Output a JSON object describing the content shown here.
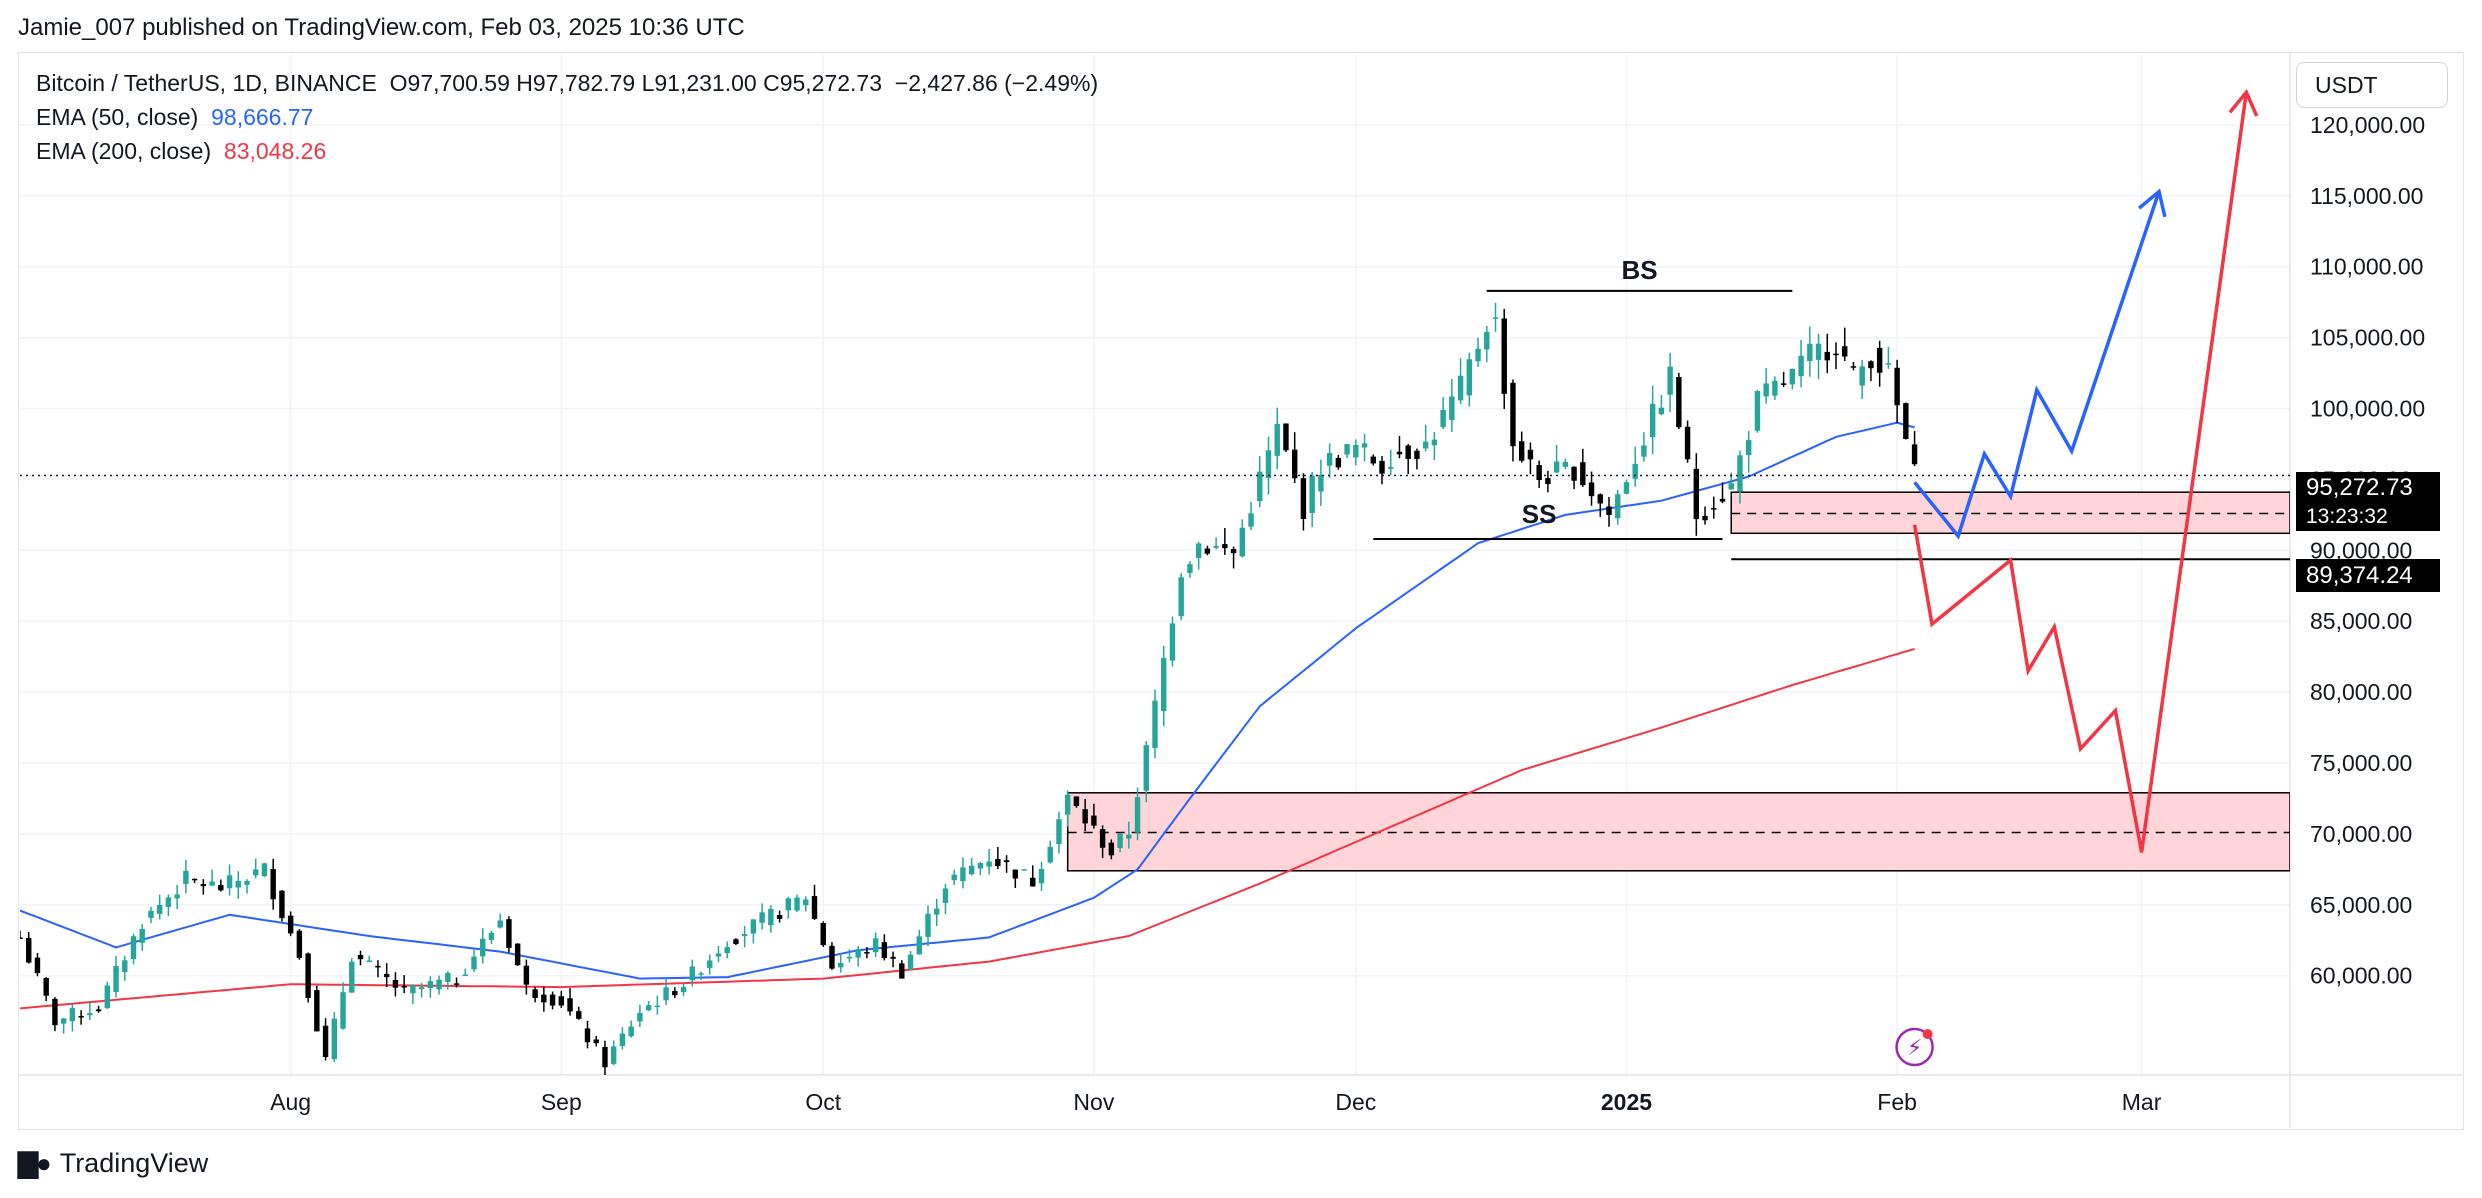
{
  "publisher": "Jamie_007 published on TradingView.com, Feb 03, 2025 10:36 UTC",
  "legend": {
    "symbol": "Bitcoin / TetherUS, 1D, BINANCE",
    "ohlc": "O97,700.59  H97,782.79  L91,231.00  C95,272.73",
    "change": "−2,427.86 (−2.49%)",
    "ema50_label": "EMA (50, close)",
    "ema50_value": "98,666.77",
    "ema200_label": "EMA (200, close)",
    "ema200_value": "83,048.26"
  },
  "currency_button": "USDT",
  "price_tags": {
    "last_price": "95,272.73",
    "countdown": "13:23:32",
    "level": "89,374.24"
  },
  "brand": "TradingView",
  "colors": {
    "up": "#26a69a",
    "down": "#000000",
    "ema50": "#2962ff",
    "ema200": "#f23645",
    "zone_fill": "#ffd5d9",
    "bullish_path": "#2962ff",
    "bearish_path": "#f23645"
  },
  "chart_data": {
    "type": "candlestick",
    "x_axis": {
      "ticks": [
        {
          "label": "Aug",
          "date": "2024-08-01"
        },
        {
          "label": "Sep",
          "date": "2024-09-01"
        },
        {
          "label": "Oct",
          "date": "2024-10-01"
        },
        {
          "label": "Nov",
          "date": "2024-11-01"
        },
        {
          "label": "Dec",
          "date": "2024-12-01"
        },
        {
          "label": "2025",
          "date": "2025-01-01",
          "bold": true
        },
        {
          "label": "Feb",
          "date": "2025-02-01"
        },
        {
          "label": "Mar",
          "date": "2025-03-01"
        }
      ],
      "range": [
        "2024-07-01",
        "2025-03-18"
      ]
    },
    "y_axis": {
      "range": [
        53000,
        125000
      ],
      "ticks": [
        60000,
        65000,
        70000,
        75000,
        80000,
        85000,
        90000,
        95000,
        100000,
        105000,
        110000,
        115000,
        120000
      ],
      "tick_labels": [
        "60,000.00",
        "65,000.00",
        "70,000.00",
        "75,000.00",
        "80,000.00",
        "85,000.00",
        "90,000.00",
        "95,000.00",
        "100,000.00",
        "105,000.00",
        "110,000.00",
        "115,000.00",
        "120,000.00"
      ]
    },
    "close_anchors": [
      [
        "2024-07-01",
        62700
      ],
      [
        "2024-07-05",
        56800
      ],
      [
        "2024-07-10",
        57800
      ],
      [
        "2024-07-15",
        63800
      ],
      [
        "2024-07-20",
        66800
      ],
      [
        "2024-07-24",
        66200
      ],
      [
        "2024-07-29",
        67500
      ],
      [
        "2024-08-02",
        61500
      ],
      [
        "2024-08-05",
        54000
      ],
      [
        "2024-08-08",
        61500
      ],
      [
        "2024-08-14",
        58800
      ],
      [
        "2024-08-20",
        59800
      ],
      [
        "2024-08-25",
        64000
      ],
      [
        "2024-08-28",
        59100
      ],
      [
        "2024-09-01",
        58200
      ],
      [
        "2024-09-06",
        53900
      ],
      [
        "2024-09-10",
        57500
      ],
      [
        "2024-09-15",
        59500
      ],
      [
        "2024-09-20",
        62500
      ],
      [
        "2024-09-25",
        64200
      ],
      [
        "2024-09-29",
        65600
      ],
      [
        "2024-10-02",
        60700
      ],
      [
        "2024-10-07",
        62200
      ],
      [
        "2024-10-10",
        60300
      ],
      [
        "2024-10-15",
        66500
      ],
      [
        "2024-10-20",
        68400
      ],
      [
        "2024-10-25",
        66700
      ],
      [
        "2024-10-29",
        72500
      ],
      [
        "2024-11-03",
        68700
      ],
      [
        "2024-11-05",
        70200
      ],
      [
        "2024-11-07",
        75800
      ],
      [
        "2024-11-11",
        88700
      ],
      [
        "2024-11-13",
        90500
      ],
      [
        "2024-11-17",
        89800
      ],
      [
        "2024-11-22",
        98500
      ],
      [
        "2024-11-25",
        93000
      ],
      [
        "2024-11-27",
        96000
      ],
      [
        "2024-12-01",
        97200
      ],
      [
        "2024-12-04",
        96000
      ],
      [
        "2024-12-05",
        96800
      ],
      [
        "2024-12-09",
        97400
      ],
      [
        "2024-12-13",
        101400
      ],
      [
        "2024-12-16",
        106100
      ],
      [
        "2024-12-17",
        106000
      ],
      [
        "2024-12-19",
        97500
      ],
      [
        "2024-12-22",
        95100
      ],
      [
        "2024-12-26",
        95800
      ],
      [
        "2024-12-30",
        92500
      ],
      [
        "2025-01-03",
        98000
      ],
      [
        "2025-01-06",
        102200
      ],
      [
        "2025-01-09",
        92500
      ],
      [
        "2025-01-13",
        94500
      ],
      [
        "2025-01-16",
        100500
      ],
      [
        "2025-01-20",
        102300
      ],
      [
        "2025-01-22",
        103700
      ],
      [
        "2025-01-25",
        104700
      ],
      [
        "2025-01-27",
        102100
      ],
      [
        "2025-01-29",
        103800
      ],
      [
        "2025-01-31",
        102400
      ],
      [
        "2025-02-02",
        97700
      ],
      [
        "2025-02-03",
        95272
      ]
    ],
    "ema50_anchors": [
      [
        "2024-07-01",
        64600
      ],
      [
        "2024-07-12",
        62000
      ],
      [
        "2024-07-25",
        64300
      ],
      [
        "2024-08-10",
        62800
      ],
      [
        "2024-08-25",
        61700
      ],
      [
        "2024-09-10",
        59800
      ],
      [
        "2024-09-20",
        59900
      ],
      [
        "2024-10-05",
        61800
      ],
      [
        "2024-10-20",
        62700
      ],
      [
        "2024-11-01",
        65500
      ],
      [
        "2024-11-06",
        67500
      ],
      [
        "2024-11-12",
        72500
      ],
      [
        "2024-11-20",
        79000
      ],
      [
        "2024-12-01",
        84500
      ],
      [
        "2024-12-15",
        90500
      ],
      [
        "2024-12-25",
        92500
      ],
      [
        "2025-01-05",
        93500
      ],
      [
        "2025-01-15",
        95200
      ],
      [
        "2025-01-25",
        98000
      ],
      [
        "2025-02-01",
        99000
      ],
      [
        "2025-02-03",
        98666
      ]
    ],
    "ema200_anchors": [
      [
        "2024-07-01",
        57700
      ],
      [
        "2024-08-01",
        59400
      ],
      [
        "2024-09-01",
        59200
      ],
      [
        "2024-10-01",
        59800
      ],
      [
        "2024-10-20",
        61000
      ],
      [
        "2024-11-05",
        62800
      ],
      [
        "2024-11-20",
        66500
      ],
      [
        "2024-12-05",
        70500
      ],
      [
        "2024-12-20",
        74500
      ],
      [
        "2025-01-05",
        77500
      ],
      [
        "2025-01-20",
        80500
      ],
      [
        "2025-02-03",
        83048
      ]
    ],
    "annotations": {
      "last_price": 95272.73,
      "buyside_liquidity": {
        "label": "BS",
        "from": "2024-12-16",
        "to": "2025-01-20",
        "price": 108300
      },
      "sellside_liquidity": {
        "label": "SS",
        "from": "2024-12-03",
        "to": "2025-01-12",
        "price": 90800
      },
      "zones": [
        {
          "from": "2025-01-13",
          "to": "2025-03-18",
          "top": 94100,
          "mid": 92600,
          "bottom": 91200
        },
        {
          "from": "2024-10-29",
          "to": "2025-03-18",
          "top": 72900,
          "mid": 70100,
          "bottom": 67400
        }
      ],
      "level_line": {
        "from": "2025-01-13",
        "to": "2025-03-18",
        "price": 89374.24
      },
      "bullish_projection": [
        [
          "2025-02-03",
          94800
        ],
        [
          "2025-02-08",
          91000
        ],
        [
          "2025-02-11",
          96800
        ],
        [
          "2025-02-14",
          93800
        ],
        [
          "2025-02-17",
          101300
        ],
        [
          "2025-02-21",
          97000
        ],
        [
          "2025-03-03",
          115300
        ]
      ],
      "bearish_projection": [
        [
          "2025-02-03",
          91800
        ],
        [
          "2025-02-05",
          84800
        ],
        [
          "2025-02-14",
          89300
        ],
        [
          "2025-02-16",
          81500
        ],
        [
          "2025-02-19",
          84600
        ],
        [
          "2025-02-22",
          76000
        ],
        [
          "2025-02-26",
          78700
        ],
        [
          "2025-03-01",
          68700
        ],
        [
          "2025-03-13",
          122300
        ]
      ]
    }
  }
}
